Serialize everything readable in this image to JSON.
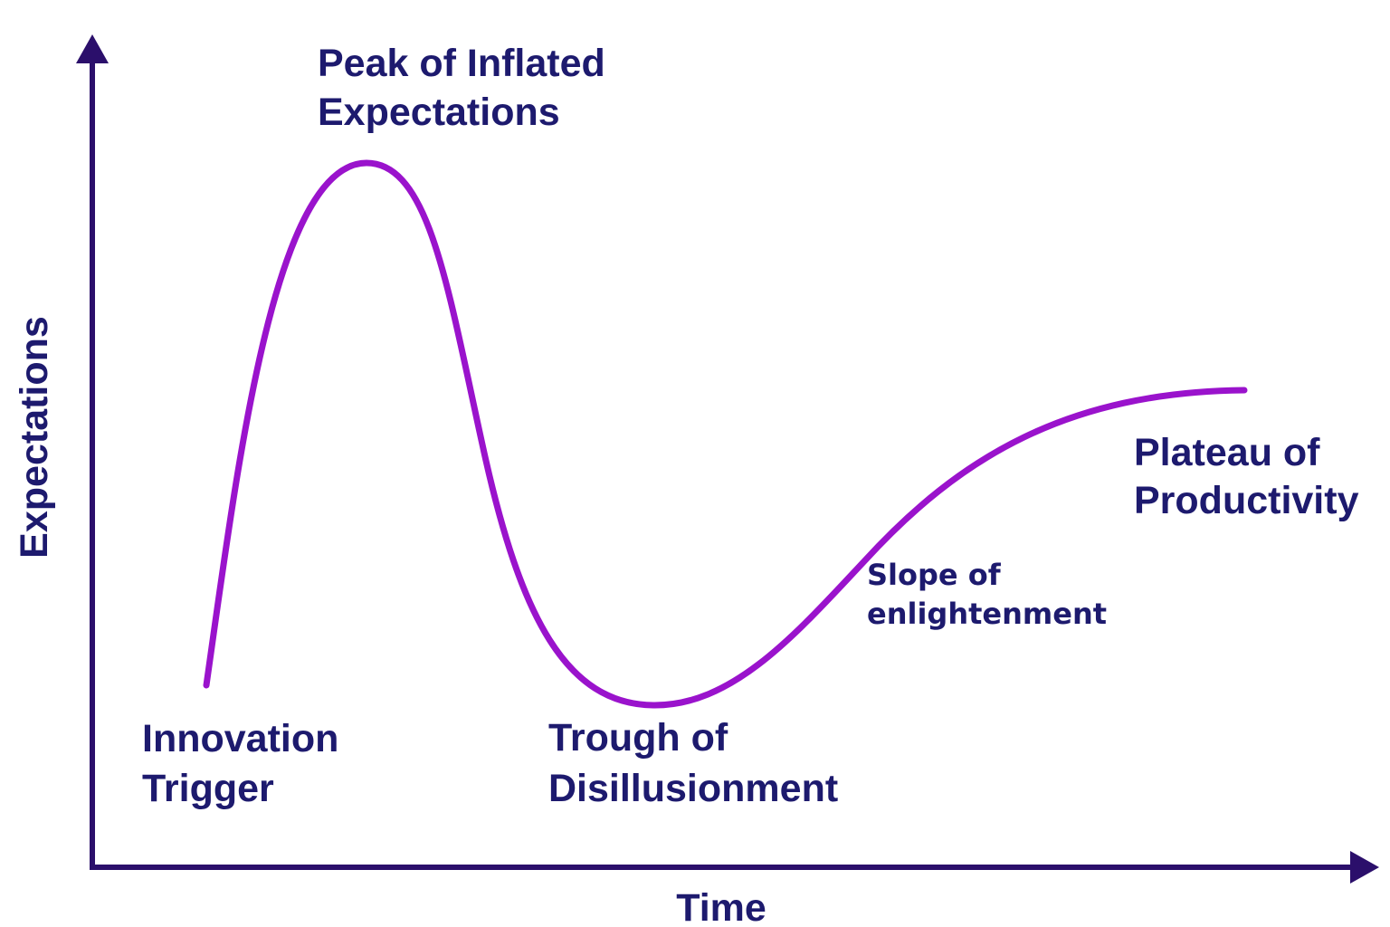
{
  "axes": {
    "y_label": "Expectations",
    "x_label": "Time"
  },
  "phases": [
    {
      "id": "innovation-trigger",
      "lines": [
        "Innovation",
        "Trigger"
      ]
    },
    {
      "id": "peak-of-inflated-expectations",
      "lines": [
        "Peak of Inflated",
        "Expectations"
      ]
    },
    {
      "id": "trough-of-disillusionment",
      "lines": [
        "Trough of",
        "Disillusionment"
      ]
    },
    {
      "id": "slope-of-enlightenment",
      "lines": [
        "Slope of",
        "enlightenment"
      ]
    },
    {
      "id": "plateau-of-productivity",
      "lines": [
        "Plateau of",
        "Productivity"
      ]
    }
  ],
  "colors": {
    "axis": "#2b0f6b",
    "curve": "#9a13cc",
    "text": "#1d1a6e",
    "background": "#ffffff"
  }
}
